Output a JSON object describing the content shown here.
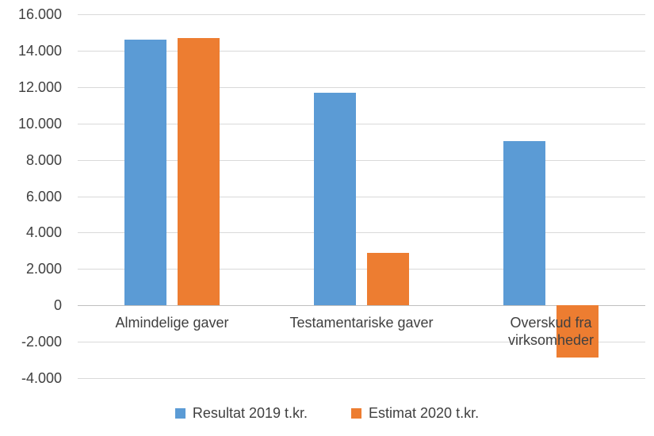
{
  "chart_data": {
    "type": "bar",
    "title": "",
    "xlabel": "",
    "ylabel": "",
    "categories": [
      "Almindelige gaver",
      "Testamentariske gaver",
      "Overskud fra virksomheder"
    ],
    "series": [
      {
        "name": "Resultat 2019 t.kr.",
        "color": "#5B9BD5",
        "values": [
          14600,
          11700,
          9050
        ]
      },
      {
        "name": "Estimat 2020 t.kr.",
        "color": "#ED7D31",
        "values": [
          14700,
          2900,
          -2850
        ]
      }
    ],
    "ylim": [
      -4000,
      16000
    ],
    "ytick_step": 2000,
    "yticks": [
      {
        "value": 16000,
        "label": "16.000"
      },
      {
        "value": 14000,
        "label": "14.000"
      },
      {
        "value": 12000,
        "label": "12.000"
      },
      {
        "value": 10000,
        "label": "10.000"
      },
      {
        "value": 8000,
        "label": "8.000"
      },
      {
        "value": 6000,
        "label": "6.000"
      },
      {
        "value": 4000,
        "label": "4.000"
      },
      {
        "value": 2000,
        "label": "2.000"
      },
      {
        "value": 0,
        "label": "0"
      },
      {
        "value": -2000,
        "label": "-2.000"
      },
      {
        "value": -4000,
        "label": "-4.000"
      }
    ],
    "grid": true,
    "legend_position": "bottom"
  },
  "colors": {
    "series_2019": "#5B9BD5",
    "series_2020": "#ED7D31",
    "gridline": "#D9D9D9",
    "axis_line": "#BFBFBF",
    "text": "#404040",
    "background": "#FFFFFF"
  }
}
